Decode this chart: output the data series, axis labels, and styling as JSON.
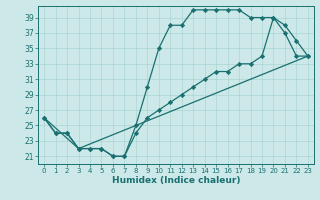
{
  "xlabel": "Humidex (Indice chaleur)",
  "bg_color": "#cce8e8",
  "grid_color": "#aad4d4",
  "line_color": "#1a7070",
  "xlim": [
    -0.5,
    23.5
  ],
  "ylim": [
    20.0,
    40.5
  ],
  "yticks": [
    21,
    23,
    25,
    27,
    29,
    31,
    33,
    35,
    37,
    39
  ],
  "xticks": [
    0,
    1,
    2,
    3,
    4,
    5,
    6,
    7,
    8,
    9,
    10,
    11,
    12,
    13,
    14,
    15,
    16,
    17,
    18,
    19,
    20,
    21,
    22,
    23
  ],
  "line1_x": [
    0,
    1,
    2,
    3,
    4,
    5,
    6,
    7,
    8,
    9,
    10,
    11,
    12,
    13,
    14,
    15,
    16,
    17,
    18,
    19,
    20,
    21,
    22,
    23
  ],
  "line1_y": [
    26,
    24,
    24,
    22,
    22,
    22,
    21,
    21,
    25,
    30,
    35,
    38,
    38,
    40,
    40,
    40,
    40,
    40,
    39,
    39,
    39,
    38,
    36,
    34
  ],
  "line2_x": [
    0,
    3,
    23
  ],
  "line2_y": [
    26,
    22,
    34
  ],
  "line3_x": [
    0,
    1,
    2,
    3,
    4,
    5,
    6,
    7,
    8,
    9,
    10,
    11,
    12,
    13,
    14,
    15,
    16,
    17,
    18,
    19,
    20,
    21,
    22,
    23
  ],
  "line3_y": [
    26,
    24,
    24,
    22,
    22,
    22,
    21,
    21,
    24,
    26,
    27,
    28,
    29,
    30,
    31,
    32,
    32,
    33,
    33,
    34,
    39,
    37,
    34,
    34
  ]
}
